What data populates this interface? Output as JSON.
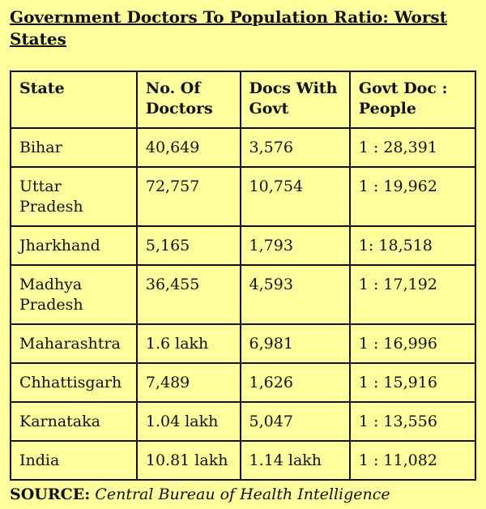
{
  "title": "Government Doctors To Population Ratio: Worst States",
  "table": {
    "headers": [
      "State",
      "No. Of Doctors",
      "Docs With Govt",
      "Govt Doc : People"
    ],
    "rows": [
      {
        "state": "Bihar",
        "doctors": "40,649",
        "govt_docs": "3,576",
        "ratio": "1 : 28,391"
      },
      {
        "state": "Uttar Pradesh",
        "doctors": "72,757",
        "govt_docs": "10,754",
        "ratio": "1 : 19,962"
      },
      {
        "state": "Jharkhand",
        "doctors": "5,165",
        "govt_docs": "1,793",
        "ratio": "1: 18,518"
      },
      {
        "state": "Madhya Pradesh",
        "doctors": "36,455",
        "govt_docs": "4,593",
        "ratio": "1 : 17,192"
      },
      {
        "state": "Maharashtra",
        "doctors": "1.6 lakh",
        "govt_docs": "6,981",
        "ratio": "1 : 16,996"
      },
      {
        "state": "Chhattisgarh",
        "doctors": "7,489",
        "govt_docs": "1,626",
        "ratio": "1 : 15,916"
      },
      {
        "state": "Karnataka",
        "doctors": "1.04 lakh",
        "govt_docs": "5,047",
        "ratio": "1 : 13,556"
      },
      {
        "state": "India",
        "doctors": "10.81 lakh",
        "govt_docs": "1.14 lakh",
        "ratio": "1 : 11,082"
      }
    ]
  },
  "source": {
    "label": "SOURCE:",
    "text": "Central Bureau of Health Intelligence"
  },
  "colors": {
    "background": "#ffff9e",
    "text": "#111111",
    "border": "#111111"
  }
}
